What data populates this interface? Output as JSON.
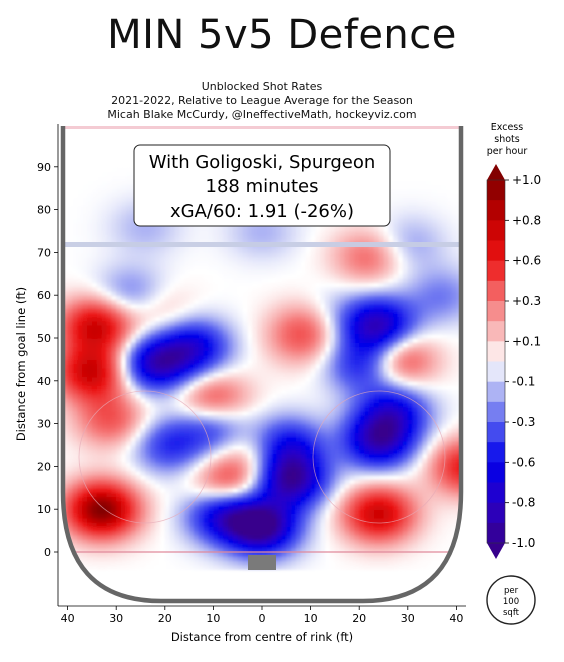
{
  "title": "MIN 5v5 Defence",
  "subtitle_lines": [
    "Unblocked Shot Rates",
    "2021-2022, Relative to League Average for the Season",
    "Micah Blake McCurdy, @IneffectiveMath, hockeyviz.com"
  ],
  "info_box": {
    "line1": "With Goligoski, Spurgeon",
    "line2": "188 minutes",
    "line3": "xGA/60: 1.91 (-26%)"
  },
  "chart_data": {
    "type": "heatmap",
    "title": "MIN 5v5 Defence",
    "xlabel": "Distance from centre of rink (ft)",
    "ylabel": "Distance from goal line (ft)",
    "xlim": [
      -43,
      43
    ],
    "ylim": [
      -4,
      90
    ],
    "x_ticks": [
      40,
      30,
      20,
      10,
      0,
      10,
      20,
      30,
      40
    ],
    "x_tick_values": [
      -40,
      -30,
      -20,
      -10,
      0,
      10,
      20,
      30,
      40
    ],
    "y_ticks": [
      0,
      10,
      20,
      30,
      40,
      50,
      60,
      70,
      80,
      90
    ],
    "colorbar": {
      "title_lines": [
        "Excess",
        "shots",
        "per hour"
      ],
      "range": [
        -1.0,
        1.0
      ],
      "tick_labels": [
        "+1.0",
        "+0.8",
        "+0.6",
        "+0.3",
        "+0.1",
        "-0.1",
        "-0.3",
        "-0.6",
        "-0.8",
        "-1.0"
      ],
      "tick_values": [
        1.0,
        0.8,
        0.6,
        0.3,
        0.1,
        -0.1,
        -0.3,
        -0.6,
        -0.8,
        -1.0
      ]
    },
    "scale_badge_lines": [
      "per",
      "100",
      "sqft"
    ],
    "hotspots": [
      {
        "x": 24,
        "y": 53,
        "value": -0.85
      },
      {
        "x": 21,
        "y": 44,
        "value": -0.55
      },
      {
        "x": 27,
        "y": 33,
        "value": -0.6
      },
      {
        "x": 24,
        "y": 26,
        "value": -0.8
      },
      {
        "x": 5,
        "y": 25,
        "value": -0.6
      },
      {
        "x": 6,
        "y": 17,
        "value": -0.9
      },
      {
        "x": 0,
        "y": 6,
        "value": -1.0
      },
      {
        "x": -8,
        "y": 9,
        "value": -0.7
      },
      {
        "x": -10,
        "y": 30,
        "value": -0.5
      },
      {
        "x": -14,
        "y": 48,
        "value": -0.65
      },
      {
        "x": -22,
        "y": 44,
        "value": -0.8
      },
      {
        "x": -19,
        "y": 25,
        "value": -0.45
      },
      {
        "x": -27,
        "y": 60,
        "value": -0.3
      },
      {
        "x": 13,
        "y": 55,
        "value": -0.35
      },
      {
        "x": 30,
        "y": 72,
        "value": -0.2
      },
      {
        "x": 0,
        "y": 75,
        "value": -0.15
      },
      {
        "x": -24,
        "y": 76,
        "value": -0.15
      },
      {
        "x": 37,
        "y": 60,
        "value": -0.25
      },
      {
        "x": 28,
        "y": 45,
        "value": 0.55
      },
      {
        "x": 42,
        "y": 20,
        "value": 0.6
      },
      {
        "x": 24,
        "y": 9,
        "value": 0.75
      },
      {
        "x": -34,
        "y": 53,
        "value": 0.75
      },
      {
        "x": -35,
        "y": 42,
        "value": 0.75
      },
      {
        "x": -31,
        "y": 31,
        "value": 0.4
      },
      {
        "x": -33,
        "y": 10,
        "value": 1.0
      },
      {
        "x": -10,
        "y": 35,
        "value": 0.55
      },
      {
        "x": -7,
        "y": 16,
        "value": 0.5
      },
      {
        "x": 11,
        "y": 54,
        "value": 0.4
      },
      {
        "x": 8,
        "y": 50,
        "value": 0.3
      },
      {
        "x": -21,
        "y": 56,
        "value": 0.2
      },
      {
        "x": 22,
        "y": 69,
        "value": 0.35
      },
      {
        "x": -1,
        "y": 23,
        "value": 0.25
      }
    ]
  },
  "colors": {
    "ice_neutral": "#ffffff",
    "boards": "#666666",
    "red_line_area": "#f4cbd3",
    "blue_line": "#c6cce4",
    "net": "#7a7a7a"
  }
}
